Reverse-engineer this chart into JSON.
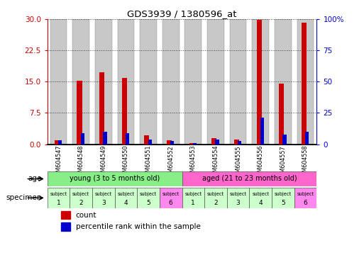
{
  "title": "GDS3939 / 1380596_at",
  "samples": [
    "GSM604547",
    "GSM604548",
    "GSM604549",
    "GSM604550",
    "GSM604551",
    "GSM604552",
    "GSM604553",
    "GSM604554",
    "GSM604555",
    "GSM604556",
    "GSM604557",
    "GSM604558"
  ],
  "counts": [
    1.0,
    15.2,
    17.2,
    15.8,
    2.2,
    1.0,
    0.3,
    1.5,
    1.1,
    29.8,
    14.5,
    29.2
  ],
  "percentile_ranks": [
    3.0,
    9.0,
    10.0,
    9.0,
    3.5,
    2.5,
    1.0,
    3.5,
    2.5,
    21.0,
    7.5,
    10.0
  ],
  "ylim_left": [
    0,
    30
  ],
  "ylim_right": [
    0,
    100
  ],
  "yticks_left": [
    0,
    7.5,
    15,
    22.5,
    30
  ],
  "yticks_right": [
    0,
    25,
    50,
    75,
    100
  ],
  "count_color": "#cc0000",
  "percentile_color": "#0000cc",
  "bar_bg_color": "#c8c8c8",
  "age_groups": [
    {
      "label": "young (3 to 5 months old)",
      "start": 0,
      "end": 6,
      "color": "#88ee88"
    },
    {
      "label": "aged (21 to 23 months old)",
      "start": 6,
      "end": 12,
      "color": "#ff66cc"
    }
  ],
  "specimen_colors": [
    "#ccffcc",
    "#ccffcc",
    "#ccffcc",
    "#ccffcc",
    "#ccffcc",
    "#ff88ee",
    "#ccffcc",
    "#ccffcc",
    "#ccffcc",
    "#ccffcc",
    "#ccffcc",
    "#ff88ee"
  ],
  "age_label": "age",
  "specimen_label": "specimen",
  "legend_count": "count",
  "legend_percentile": "percentile rank within the sample",
  "grid_color": "black",
  "grid_style": "dotted",
  "fig_width": 5.13,
  "fig_height": 3.84,
  "dpi": 100
}
